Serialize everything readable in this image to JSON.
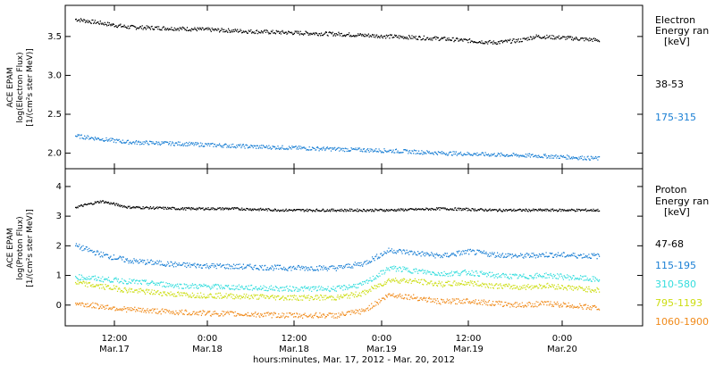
{
  "chart_data": [
    {
      "type": "scatter",
      "panel": "electron",
      "ylabel_lines": [
        "ACE EPAM",
        "log(Electron Flux)",
        "[1/(cm²s ster MeV)]"
      ],
      "ylim": [
        1.8,
        3.9
      ],
      "yticks": [
        "2.0",
        "2.5",
        "3.0",
        "3.5"
      ],
      "legend_heading": [
        "Electron",
        "Energy ran",
        "[keV]"
      ],
      "series": [
        {
          "name": "38-53",
          "color": "#000000",
          "start": 3.72,
          "end": 3.45,
          "points": [
            [
              0,
              3.72
            ],
            [
              0.1,
              3.62
            ],
            [
              0.2,
              3.6
            ],
            [
              0.35,
              3.56
            ],
            [
              0.5,
              3.53
            ],
            [
              0.6,
              3.5
            ],
            [
              0.7,
              3.47
            ],
            [
              0.8,
              3.42
            ],
            [
              0.85,
              3.45
            ],
            [
              0.88,
              3.5
            ],
            [
              0.94,
              3.48
            ],
            [
              1,
              3.45
            ]
          ]
        },
        {
          "name": "175-315",
          "color": "#1a7fd4",
          "start": 2.22,
          "end": 1.93,
          "points": [
            [
              0,
              2.22
            ],
            [
              0.1,
              2.14
            ],
            [
              0.2,
              2.12
            ],
            [
              0.35,
              2.08
            ],
            [
              0.5,
              2.05
            ],
            [
              0.6,
              2.03
            ],
            [
              0.7,
              2.0
            ],
            [
              0.8,
              1.98
            ],
            [
              0.9,
              1.96
            ],
            [
              1,
              1.93
            ]
          ]
        }
      ]
    },
    {
      "type": "scatter",
      "panel": "proton",
      "ylabel_lines": [
        "ACE EPAM",
        "log(Proton Flux)",
        "[1/(cm²s ster MeV)]"
      ],
      "ylim": [
        -0.7,
        4.6
      ],
      "yticks": [
        "0",
        "1",
        "2",
        "3",
        "4"
      ],
      "legend_heading": [
        "Proton",
        "Energy ran",
        "[keV]"
      ],
      "series": [
        {
          "name": "47-68",
          "color": "#000000",
          "points": [
            [
              0,
              3.3
            ],
            [
              0.05,
              3.5
            ],
            [
              0.1,
              3.3
            ],
            [
              0.2,
              3.25
            ],
            [
              0.3,
              3.25
            ],
            [
              0.4,
              3.2
            ],
            [
              0.5,
              3.2
            ],
            [
              0.6,
              3.2
            ],
            [
              0.7,
              3.25
            ],
            [
              0.8,
              3.2
            ],
            [
              0.9,
              3.2
            ],
            [
              1,
              3.2
            ]
          ]
        },
        {
          "name": "115-195",
          "color": "#1a7fd4",
          "points": [
            [
              0,
              2.0
            ],
            [
              0.05,
              1.7
            ],
            [
              0.1,
              1.5
            ],
            [
              0.2,
              1.35
            ],
            [
              0.3,
              1.3
            ],
            [
              0.4,
              1.25
            ],
            [
              0.5,
              1.25
            ],
            [
              0.55,
              1.4
            ],
            [
              0.6,
              1.85
            ],
            [
              0.65,
              1.75
            ],
            [
              0.7,
              1.65
            ],
            [
              0.75,
              1.8
            ],
            [
              0.8,
              1.7
            ],
            [
              0.85,
              1.65
            ],
            [
              0.9,
              1.7
            ],
            [
              1,
              1.65
            ]
          ]
        },
        {
          "name": "310-580",
          "color": "#33dddd",
          "points": [
            [
              0,
              0.95
            ],
            [
              0.1,
              0.8
            ],
            [
              0.2,
              0.65
            ],
            [
              0.3,
              0.6
            ],
            [
              0.4,
              0.55
            ],
            [
              0.5,
              0.55
            ],
            [
              0.55,
              0.7
            ],
            [
              0.6,
              1.25
            ],
            [
              0.65,
              1.15
            ],
            [
              0.7,
              1.05
            ],
            [
              0.75,
              1.1
            ],
            [
              0.8,
              1.0
            ],
            [
              0.85,
              0.95
            ],
            [
              0.9,
              1.0
            ],
            [
              1,
              0.85
            ]
          ]
        },
        {
          "name": "795-1193",
          "color": "#ccdd11",
          "points": [
            [
              0,
              0.75
            ],
            [
              0.1,
              0.5
            ],
            [
              0.2,
              0.35
            ],
            [
              0.3,
              0.3
            ],
            [
              0.4,
              0.25
            ],
            [
              0.5,
              0.25
            ],
            [
              0.55,
              0.4
            ],
            [
              0.6,
              0.85
            ],
            [
              0.65,
              0.8
            ],
            [
              0.7,
              0.7
            ],
            [
              0.75,
              0.75
            ],
            [
              0.8,
              0.65
            ],
            [
              0.85,
              0.6
            ],
            [
              0.9,
              0.65
            ],
            [
              1,
              0.5
            ]
          ]
        },
        {
          "name": "1060-1900",
          "color": "#f08a1a",
          "points": [
            [
              0,
              0.05
            ],
            [
              0.1,
              -0.15
            ],
            [
              0.2,
              -0.25
            ],
            [
              0.3,
              -0.3
            ],
            [
              0.4,
              -0.35
            ],
            [
              0.5,
              -0.35
            ],
            [
              0.55,
              -0.2
            ],
            [
              0.6,
              0.35
            ],
            [
              0.65,
              0.25
            ],
            [
              0.7,
              0.1
            ],
            [
              0.75,
              0.15
            ],
            [
              0.8,
              0.05
            ],
            [
              0.85,
              0.0
            ],
            [
              0.9,
              0.05
            ],
            [
              1,
              -0.1
            ]
          ]
        }
      ]
    }
  ],
  "x_axis": {
    "ticks": [
      {
        "time": "12:00",
        "date": "Mar.17"
      },
      {
        "time": "0:00",
        "date": "Mar.18"
      },
      {
        "time": "12:00",
        "date": "Mar.18"
      },
      {
        "time": "0:00",
        "date": "Mar.19"
      },
      {
        "time": "12:00",
        "date": "Mar.19"
      },
      {
        "time": "0:00",
        "date": "Mar.20"
      }
    ],
    "xlabel": "hours:minutes, Mar. 17, 2012 - Mar. 20, 2012"
  }
}
